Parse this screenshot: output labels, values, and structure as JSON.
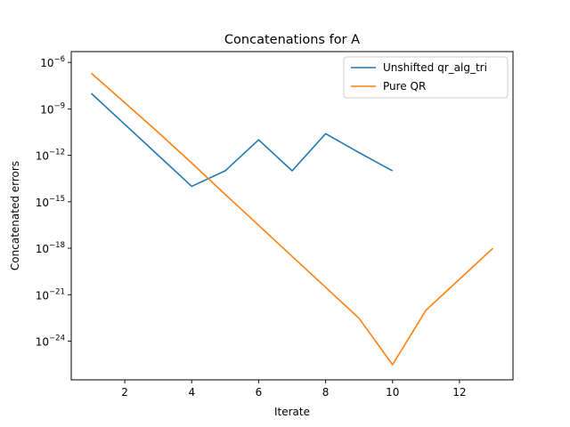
{
  "chart_data": {
    "type": "line",
    "title": "Concatenations for A",
    "xlabel": "Iterate",
    "ylabel": "Concatenated errors",
    "xlim": [
      0.4,
      13.6
    ],
    "ylim_log10": [
      -26.5,
      -5.3
    ],
    "yscale": "log",
    "x_ticks": [
      2,
      4,
      6,
      8,
      10,
      12
    ],
    "y_tick_exponents": [
      -6,
      -9,
      -12,
      -15,
      -18,
      -21,
      -24
    ],
    "y_tick_base": "10",
    "y_tick_minus": "−",
    "grid": false,
    "legend_position": "top-right",
    "series": [
      {
        "name": "Unshifted qr_alg_tri",
        "color": "#1f77b4",
        "x": [
          1,
          2,
          3,
          4,
          5,
          6,
          7,
          8,
          9,
          10
        ],
        "y": [
          1e-08,
          1e-10,
          1e-12,
          1e-14,
          1e-13,
          1e-11,
          1e-13,
          2.5e-11,
          1.5e-12,
          1e-13
        ]
      },
      {
        "name": "Pure QR",
        "color": "#ff7f0e",
        "x": [
          1,
          2,
          3,
          4,
          5,
          6,
          7,
          8,
          9,
          10,
          11,
          12,
          13
        ],
        "y": [
          2e-07,
          2.5e-09,
          3e-11,
          3.2e-13,
          3e-15,
          3e-17,
          3e-19,
          3e-21,
          3e-23,
          3e-26,
          1e-22,
          1e-20,
          1e-18
        ]
      }
    ]
  }
}
